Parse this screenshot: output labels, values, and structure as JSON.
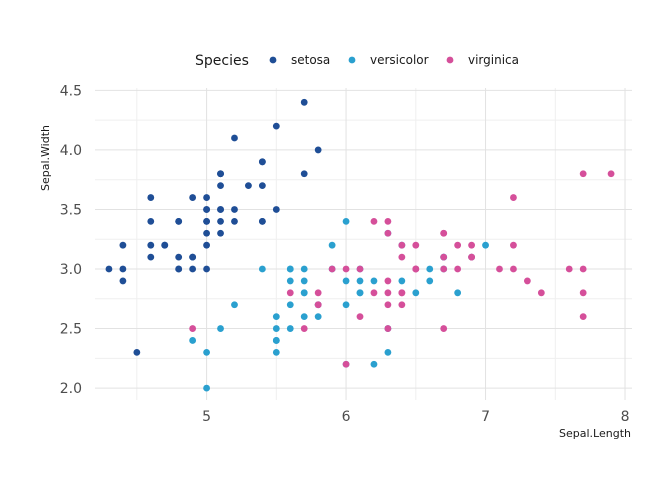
{
  "chart_data": {
    "type": "scatter",
    "xlabel": "Sepal.Length",
    "ylabel": "Sepal.Width",
    "xlim": [
      4.2,
      8.05
    ],
    "ylim": [
      1.9,
      4.52
    ],
    "x_ticks": [
      5,
      6,
      7,
      8
    ],
    "y_ticks": [
      2.0,
      2.5,
      3.0,
      3.5,
      4.0,
      4.5
    ],
    "x_tick_labels": [
      "5",
      "6",
      "7",
      "8"
    ],
    "y_tick_labels": [
      "2.0",
      "2.5",
      "3.0",
      "3.5",
      "4.0",
      "4.5"
    ],
    "grid": true,
    "legend": {
      "title": "Species",
      "position": "top"
    },
    "series": [
      {
        "name": "setosa",
        "color": "#1f4e96",
        "points": [
          [
            5.1,
            3.5
          ],
          [
            4.9,
            3.0
          ],
          [
            4.7,
            3.2
          ],
          [
            4.6,
            3.1
          ],
          [
            5.0,
            3.6
          ],
          [
            5.4,
            3.9
          ],
          [
            4.6,
            3.4
          ],
          [
            5.0,
            3.4
          ],
          [
            4.4,
            2.9
          ],
          [
            4.9,
            3.1
          ],
          [
            5.4,
            3.7
          ],
          [
            4.8,
            3.4
          ],
          [
            4.8,
            3.0
          ],
          [
            4.3,
            3.0
          ],
          [
            5.8,
            4.0
          ],
          [
            5.7,
            4.4
          ],
          [
            5.4,
            3.9
          ],
          [
            5.1,
            3.5
          ],
          [
            5.7,
            3.8
          ],
          [
            5.1,
            3.8
          ],
          [
            5.4,
            3.4
          ],
          [
            5.1,
            3.7
          ],
          [
            4.6,
            3.6
          ],
          [
            5.1,
            3.3
          ],
          [
            4.8,
            3.4
          ],
          [
            5.0,
            3.0
          ],
          [
            5.0,
            3.4
          ],
          [
            5.2,
            3.5
          ],
          [
            5.2,
            3.4
          ],
          [
            4.7,
            3.2
          ],
          [
            4.8,
            3.1
          ],
          [
            5.4,
            3.4
          ],
          [
            5.2,
            4.1
          ],
          [
            5.5,
            4.2
          ],
          [
            4.9,
            3.1
          ],
          [
            5.0,
            3.2
          ],
          [
            5.5,
            3.5
          ],
          [
            4.9,
            3.6
          ],
          [
            4.4,
            3.0
          ],
          [
            5.1,
            3.4
          ],
          [
            5.0,
            3.5
          ],
          [
            4.5,
            2.3
          ],
          [
            4.4,
            3.2
          ],
          [
            5.0,
            3.5
          ],
          [
            5.1,
            3.8
          ],
          [
            4.8,
            3.0
          ],
          [
            5.1,
            3.8
          ],
          [
            4.6,
            3.2
          ],
          [
            5.3,
            3.7
          ],
          [
            5.0,
            3.3
          ]
        ]
      },
      {
        "name": "versicolor",
        "color": "#2aa0cf",
        "points": [
          [
            7.0,
            3.2
          ],
          [
            6.4,
            3.2
          ],
          [
            6.9,
            3.1
          ],
          [
            5.5,
            2.3
          ],
          [
            6.5,
            2.8
          ],
          [
            5.7,
            2.8
          ],
          [
            6.3,
            3.3
          ],
          [
            4.9,
            2.4
          ],
          [
            6.6,
            2.9
          ],
          [
            5.2,
            2.7
          ],
          [
            5.0,
            2.0
          ],
          [
            5.9,
            3.0
          ],
          [
            6.0,
            2.2
          ],
          [
            6.1,
            2.9
          ],
          [
            5.6,
            2.9
          ],
          [
            6.7,
            3.1
          ],
          [
            5.6,
            3.0
          ],
          [
            5.8,
            2.7
          ],
          [
            6.2,
            2.2
          ],
          [
            5.6,
            2.5
          ],
          [
            5.9,
            3.2
          ],
          [
            6.1,
            2.8
          ],
          [
            6.3,
            2.5
          ],
          [
            6.1,
            2.8
          ],
          [
            6.4,
            2.9
          ],
          [
            6.6,
            3.0
          ],
          [
            6.8,
            2.8
          ],
          [
            6.7,
            3.0
          ],
          [
            6.0,
            2.9
          ],
          [
            5.7,
            2.6
          ],
          [
            5.5,
            2.4
          ],
          [
            5.5,
            2.4
          ],
          [
            5.8,
            2.7
          ],
          [
            6.0,
            2.7
          ],
          [
            5.4,
            3.0
          ],
          [
            6.0,
            3.4
          ],
          [
            6.7,
            3.1
          ],
          [
            6.3,
            2.3
          ],
          [
            5.6,
            3.0
          ],
          [
            5.5,
            2.5
          ],
          [
            5.5,
            2.6
          ],
          [
            6.1,
            3.0
          ],
          [
            5.8,
            2.6
          ],
          [
            5.0,
            2.3
          ],
          [
            5.6,
            2.7
          ],
          [
            5.7,
            3.0
          ],
          [
            5.7,
            2.9
          ],
          [
            6.2,
            2.9
          ],
          [
            5.1,
            2.5
          ],
          [
            5.7,
            2.8
          ]
        ]
      },
      {
        "name": "virginica",
        "color": "#d54f9a",
        "points": [
          [
            6.3,
            3.3
          ],
          [
            5.8,
            2.7
          ],
          [
            7.1,
            3.0
          ],
          [
            6.3,
            2.9
          ],
          [
            6.5,
            3.0
          ],
          [
            7.6,
            3.0
          ],
          [
            4.9,
            2.5
          ],
          [
            7.3,
            2.9
          ],
          [
            6.7,
            2.5
          ],
          [
            7.2,
            3.6
          ],
          [
            6.5,
            3.2
          ],
          [
            6.4,
            2.7
          ],
          [
            6.8,
            3.0
          ],
          [
            5.7,
            2.5
          ],
          [
            5.8,
            2.8
          ],
          [
            6.4,
            3.2
          ],
          [
            6.5,
            3.0
          ],
          [
            7.7,
            3.8
          ],
          [
            7.7,
            2.6
          ],
          [
            6.0,
            2.2
          ],
          [
            6.9,
            3.2
          ],
          [
            5.6,
            2.8
          ],
          [
            7.7,
            2.8
          ],
          [
            6.3,
            2.7
          ],
          [
            6.7,
            3.3
          ],
          [
            7.2,
            3.2
          ],
          [
            6.2,
            2.8
          ],
          [
            6.1,
            3.0
          ],
          [
            6.4,
            2.8
          ],
          [
            7.2,
            3.0
          ],
          [
            7.4,
            2.8
          ],
          [
            7.9,
            3.8
          ],
          [
            6.4,
            2.8
          ],
          [
            6.3,
            2.8
          ],
          [
            6.1,
            2.6
          ],
          [
            7.7,
            3.0
          ],
          [
            6.3,
            3.4
          ],
          [
            6.4,
            3.1
          ],
          [
            6.0,
            3.0
          ],
          [
            6.9,
            3.1
          ],
          [
            6.7,
            3.1
          ],
          [
            6.9,
            3.1
          ],
          [
            5.8,
            2.7
          ],
          [
            6.8,
            3.2
          ],
          [
            6.7,
            3.3
          ],
          [
            6.7,
            3.0
          ],
          [
            6.3,
            2.5
          ],
          [
            6.5,
            3.0
          ],
          [
            6.2,
            3.4
          ],
          [
            5.9,
            3.0
          ]
        ]
      }
    ]
  }
}
